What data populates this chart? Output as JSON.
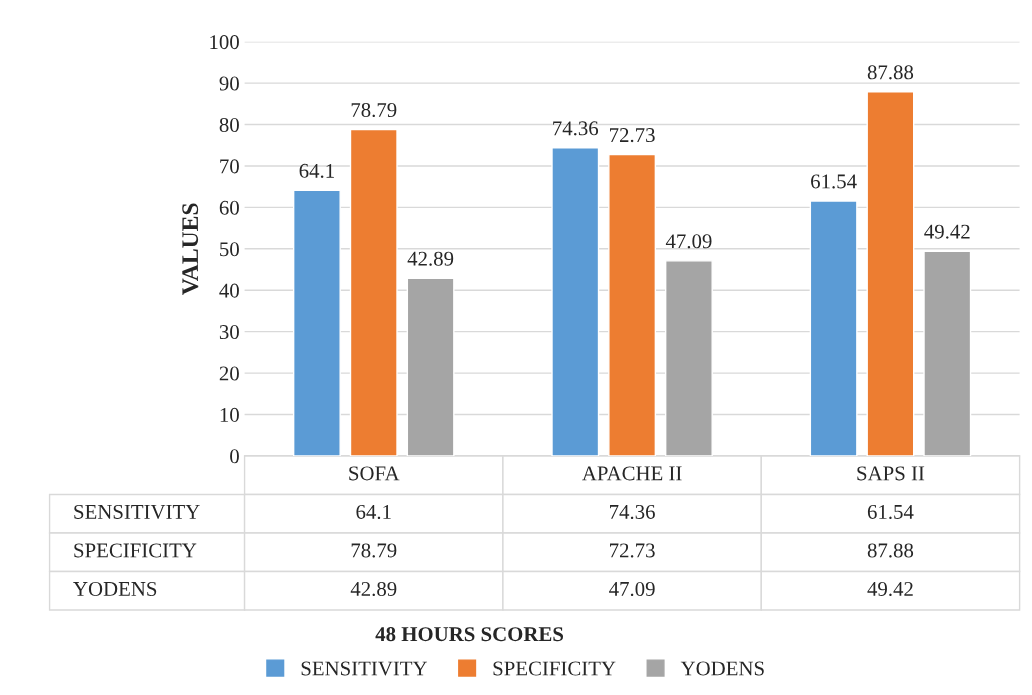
{
  "chart_data": {
    "type": "bar",
    "ylabel": "VALUES",
    "annotations": [
      "48 HOURS SCORES",
      "64.1",
      "74.36",
      "61.54",
      "78.79",
      "72.73",
      "87.88",
      "42.89",
      "47.09",
      "49.42"
    ],
    "categories": [
      "SOFA",
      "APACHE II",
      "SAPS II"
    ],
    "series": [
      {
        "name": "SENSITIVITY",
        "color": "#5b9bd5",
        "values": [
          64.1,
          74.36,
          61.54
        ]
      },
      {
        "name": "SPECIFICITY",
        "color": "#ed7d31",
        "values": [
          78.79,
          72.73,
          87.88
        ]
      },
      {
        "name": "YODENS",
        "color": "#a5a5a5",
        "values": [
          42.89,
          47.09,
          49.42
        ]
      }
    ],
    "ylim": [
      0,
      100
    ],
    "yticks": [
      0,
      10,
      20,
      30,
      40,
      50,
      60,
      70,
      80,
      90,
      100
    ],
    "grid": "y",
    "legend": "bottom",
    "data_labels": true
  }
}
